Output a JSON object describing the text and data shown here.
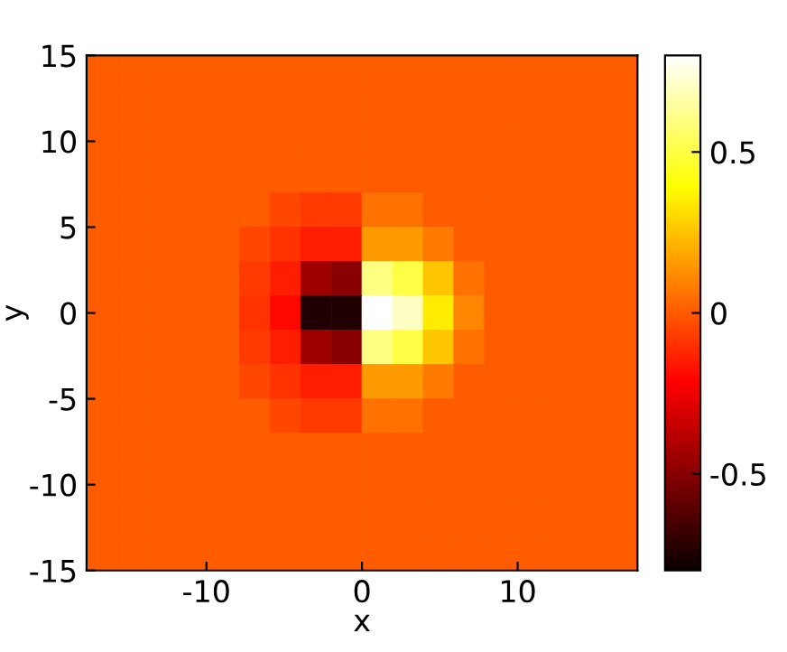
{
  "chart_data": {
    "type": "heatmap",
    "xlabel": "x",
    "ylabel": "y",
    "xlim": [
      -17.7,
      17.7
    ],
    "ylim": [
      -15,
      15
    ],
    "xticks": [
      -10,
      0,
      10
    ],
    "yticks": [
      -15,
      -10,
      -5,
      0,
      5,
      10,
      15
    ],
    "clim": [
      -0.8,
      0.8
    ],
    "cticks": [
      -0.5,
      0,
      0.5
    ],
    "cells": [
      [
        0,
        0,
        0,
        0,
        0,
        0,
        0,
        0,
        0,
        0,
        0,
        0,
        0,
        0,
        0,
        0,
        0,
        0
      ],
      [
        0,
        0,
        0,
        0,
        0,
        0,
        0,
        0,
        0,
        0,
        0,
        0,
        0,
        0,
        0,
        0,
        0,
        0
      ],
      [
        0,
        0,
        0,
        0,
        0,
        0,
        0,
        0,
        0,
        0,
        0,
        0,
        0,
        0,
        0,
        0,
        0,
        0
      ],
      [
        0,
        0,
        0,
        0,
        0,
        0,
        0,
        0,
        0,
        0,
        0,
        0,
        0,
        0,
        0,
        0,
        0,
        0
      ],
      [
        0,
        0,
        0,
        0,
        0,
        0,
        -0.05,
        -0.08,
        -0.08,
        0.05,
        0.05,
        0,
        0,
        0,
        0,
        0,
        0,
        0
      ],
      [
        0,
        0,
        0,
        0,
        0,
        -0.05,
        -0.1,
        -0.15,
        -0.15,
        0.15,
        0.15,
        0.08,
        0,
        0,
        0,
        0,
        0,
        0
      ],
      [
        0,
        0,
        0,
        0,
        0,
        -0.08,
        -0.15,
        -0.45,
        -0.5,
        0.6,
        0.5,
        0.25,
        0.05,
        0,
        0,
        0,
        0,
        0
      ],
      [
        0,
        0,
        0,
        0,
        0,
        -0.1,
        -0.2,
        -0.75,
        -0.75,
        0.8,
        0.7,
        0.35,
        0.1,
        0,
        0,
        0,
        0,
        0
      ],
      [
        0,
        0,
        0,
        0,
        0,
        -0.08,
        -0.15,
        -0.45,
        -0.5,
        0.6,
        0.5,
        0.25,
        0.05,
        0,
        0,
        0,
        0,
        0
      ],
      [
        0,
        0,
        0,
        0,
        0,
        -0.05,
        -0.1,
        -0.15,
        -0.15,
        0.15,
        0.15,
        0.08,
        0,
        0,
        0,
        0,
        0,
        0
      ],
      [
        0,
        0,
        0,
        0,
        0,
        0,
        -0.05,
        -0.08,
        -0.08,
        0.05,
        0.05,
        0,
        0,
        0,
        0,
        0,
        0,
        0
      ],
      [
        0,
        0,
        0,
        0,
        0,
        0,
        0,
        0,
        0,
        0,
        0,
        0,
        0,
        0,
        0,
        0,
        0,
        0
      ],
      [
        0,
        0,
        0,
        0,
        0,
        0,
        0,
        0,
        0,
        0,
        0,
        0,
        0,
        0,
        0,
        0,
        0,
        0
      ],
      [
        0,
        0,
        0,
        0,
        0,
        0,
        0,
        0,
        0,
        0,
        0,
        0,
        0,
        0,
        0,
        0,
        0,
        0
      ],
      [
        0,
        0,
        0,
        0,
        0,
        0,
        0,
        0,
        0,
        0,
        0,
        0,
        0,
        0,
        0,
        0,
        0,
        0
      ]
    ]
  }
}
